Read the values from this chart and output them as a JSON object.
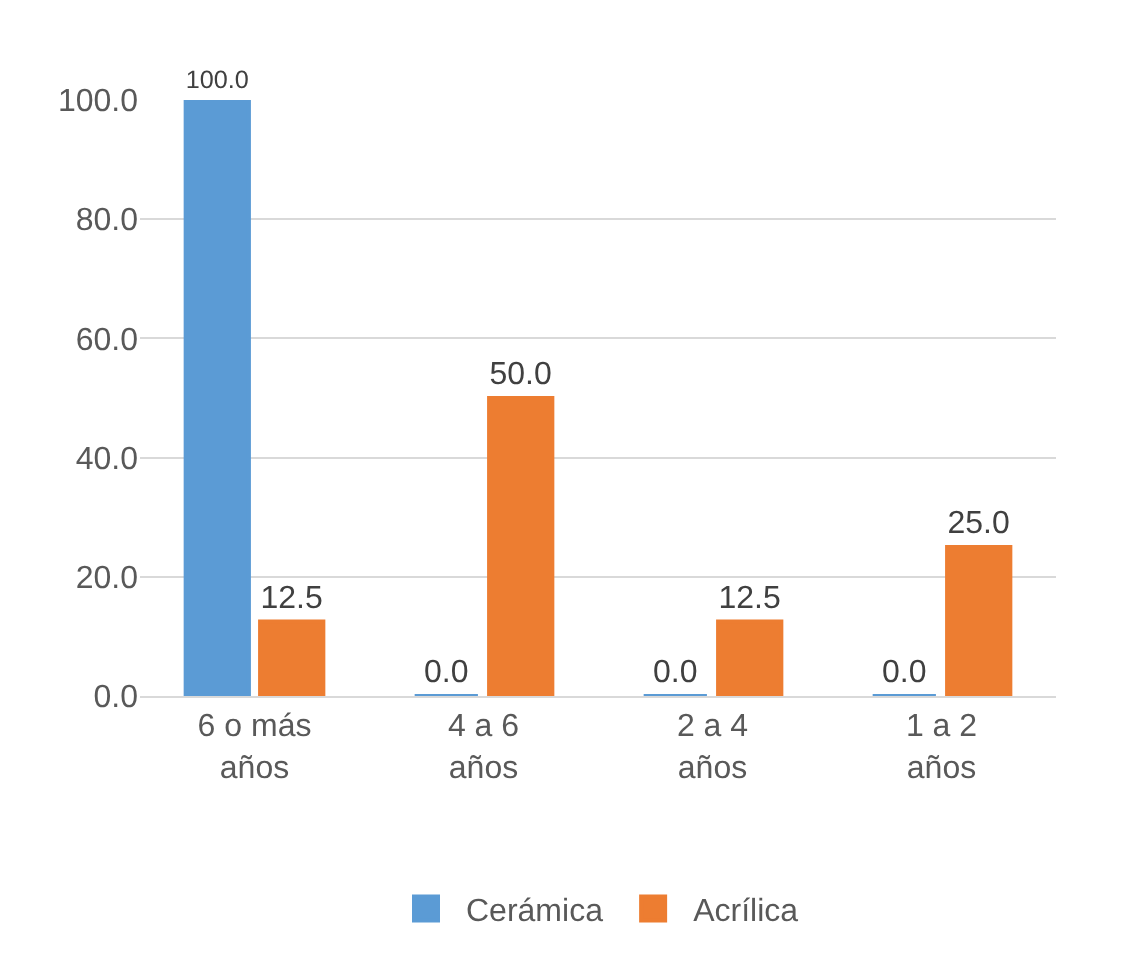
{
  "chart_data": {
    "type": "bar",
    "categories": [
      "6 o más años",
      "4 a 6 años",
      "2 a 4 años",
      "1 a 2 años"
    ],
    "series": [
      {
        "name": "Cerámica",
        "color": "#5b9bd5",
        "values": [
          100.0,
          0.0,
          0.0,
          0.0
        ],
        "value_labels": [
          "100.0",
          "0.0",
          "0.0",
          "0.0"
        ]
      },
      {
        "name": "Acrílica",
        "color": "#ed7d31",
        "values": [
          12.5,
          50.0,
          12.5,
          25.0
        ],
        "value_labels": [
          "12.5",
          "50.0",
          "12.5",
          "25.0"
        ]
      }
    ],
    "ylim": [
      0,
      100
    ],
    "yticks": [
      {
        "value": 0,
        "label": "0.0"
      },
      {
        "value": 20,
        "label": "20.0"
      },
      {
        "value": 40,
        "label": "40.0"
      },
      {
        "value": 60,
        "label": "60.0"
      },
      {
        "value": 80,
        "label": "80.0"
      },
      {
        "value": 100,
        "label": "100.0"
      }
    ],
    "grid": "y",
    "legend": "bottom"
  }
}
